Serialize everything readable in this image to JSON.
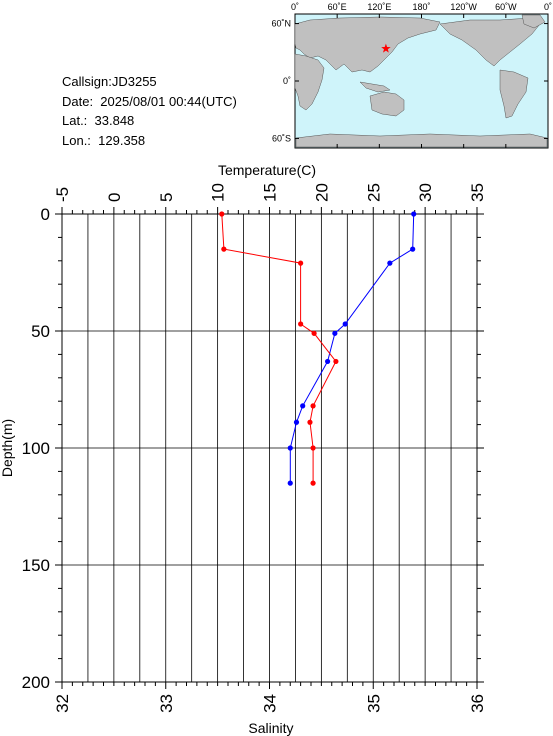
{
  "info": {
    "callsign": "Callsign:JD3255",
    "date": "Date:  2025/08/01 00:44(UTC)",
    "lat": "Lat.:  33.848",
    "lon": "Lon.:  129.358"
  },
  "map": {
    "top_labels": [
      "0˚",
      "60˚E",
      "120˚E",
      "180˚",
      "120˚W",
      "60˚W",
      "0˚"
    ],
    "left_labels": [
      "60˚N",
      "0˚",
      "60˚S"
    ],
    "marker": {
      "lon": 129.358,
      "lat": 33.848
    },
    "colors": {
      "ocean": "#cff4fa",
      "land": "#c0c0c0",
      "marker": "#ff0000"
    }
  },
  "chart_data": {
    "type": "line",
    "temperature_axis": {
      "label": "Temperature(C)",
      "range": [
        -5,
        35
      ],
      "ticks": [
        -5,
        0,
        5,
        10,
        15,
        20,
        25,
        30,
        35
      ]
    },
    "salinity_axis": {
      "label": "Salinity",
      "range": [
        32,
        36
      ],
      "ticks": [
        32,
        33,
        34,
        35,
        36
      ]
    },
    "depth_axis": {
      "label": "Depth(m)",
      "range": [
        0,
        200
      ],
      "ticks": [
        0,
        50,
        100,
        150,
        200
      ],
      "inverted": true
    },
    "grid": true,
    "series": [
      {
        "axis": "temperature",
        "color": "#0000ff",
        "points": [
          {
            "value": 28.9,
            "depth": 0
          },
          {
            "value": 28.8,
            "depth": 15
          },
          {
            "value": 26.6,
            "depth": 21
          },
          {
            "value": 22.3,
            "depth": 47
          },
          {
            "value": 21.3,
            "depth": 51
          },
          {
            "value": 20.6,
            "depth": 63
          },
          {
            "value": 18.2,
            "depth": 82
          },
          {
            "value": 17.6,
            "depth": 89
          },
          {
            "value": 17.0,
            "depth": 100
          },
          {
            "value": 17.0,
            "depth": 115
          }
        ]
      },
      {
        "axis": "salinity",
        "color": "#ff0000",
        "points": [
          {
            "value": 33.54,
            "depth": 0
          },
          {
            "value": 33.56,
            "depth": 15
          },
          {
            "value": 34.3,
            "depth": 21
          },
          {
            "value": 34.3,
            "depth": 47
          },
          {
            "value": 34.43,
            "depth": 51
          },
          {
            "value": 34.64,
            "depth": 63
          },
          {
            "value": 34.42,
            "depth": 82
          },
          {
            "value": 34.39,
            "depth": 89
          },
          {
            "value": 34.42,
            "depth": 100
          },
          {
            "value": 34.42,
            "depth": 115
          }
        ]
      }
    ]
  }
}
